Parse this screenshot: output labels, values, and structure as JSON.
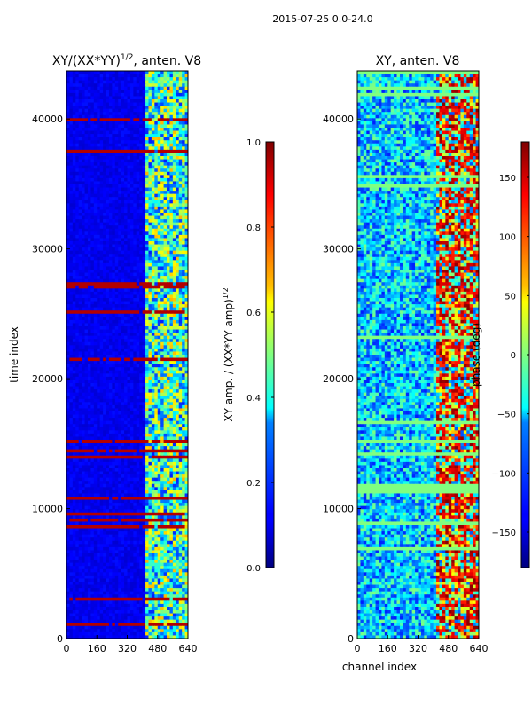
{
  "suptitle": "2015-07-25 0.0-24.0",
  "chart_data": [
    {
      "type": "heatmap",
      "title": "XY/(XX*YY)",
      "title_sup": "1/2",
      "title_tail": ", anten. V8",
      "xlabel": "",
      "ylabel": "time index",
      "xlim": [
        0,
        640
      ],
      "ylim": [
        0,
        43700
      ],
      "xticks": [
        0,
        160,
        320,
        480,
        640
      ],
      "yticks": [
        0,
        10000,
        20000,
        30000,
        40000
      ],
      "colorbar": {
        "label": "XY amp. / (XX*YY amp)",
        "label_sup": "1/2",
        "range": [
          0.0,
          1.0
        ],
        "ticks": [
          "0.0",
          "0.2",
          "0.4",
          "0.6",
          "0.8",
          "1.0"
        ],
        "tick_values": [
          0.0,
          0.2,
          0.4,
          0.6,
          0.8,
          1.0
        ],
        "colormap": "jet"
      }
    },
    {
      "type": "heatmap",
      "title": "XY, anten. V8",
      "xlabel": "channel index",
      "ylabel": "",
      "xlim": [
        0,
        640
      ],
      "ylim": [
        0,
        43700
      ],
      "xticks": [
        0,
        160,
        320,
        480,
        640
      ],
      "yticks": [
        0,
        10000,
        20000,
        30000,
        40000
      ],
      "colorbar": {
        "label": "phase (deg)",
        "range": [
          -180,
          180
        ],
        "ticks": [
          "−150",
          "−100",
          "−50",
          "0",
          "50",
          "100",
          "150"
        ],
        "tick_values": [
          -150,
          -100,
          -50,
          0,
          50,
          100,
          150
        ],
        "colormap": "jet"
      }
    }
  ]
}
